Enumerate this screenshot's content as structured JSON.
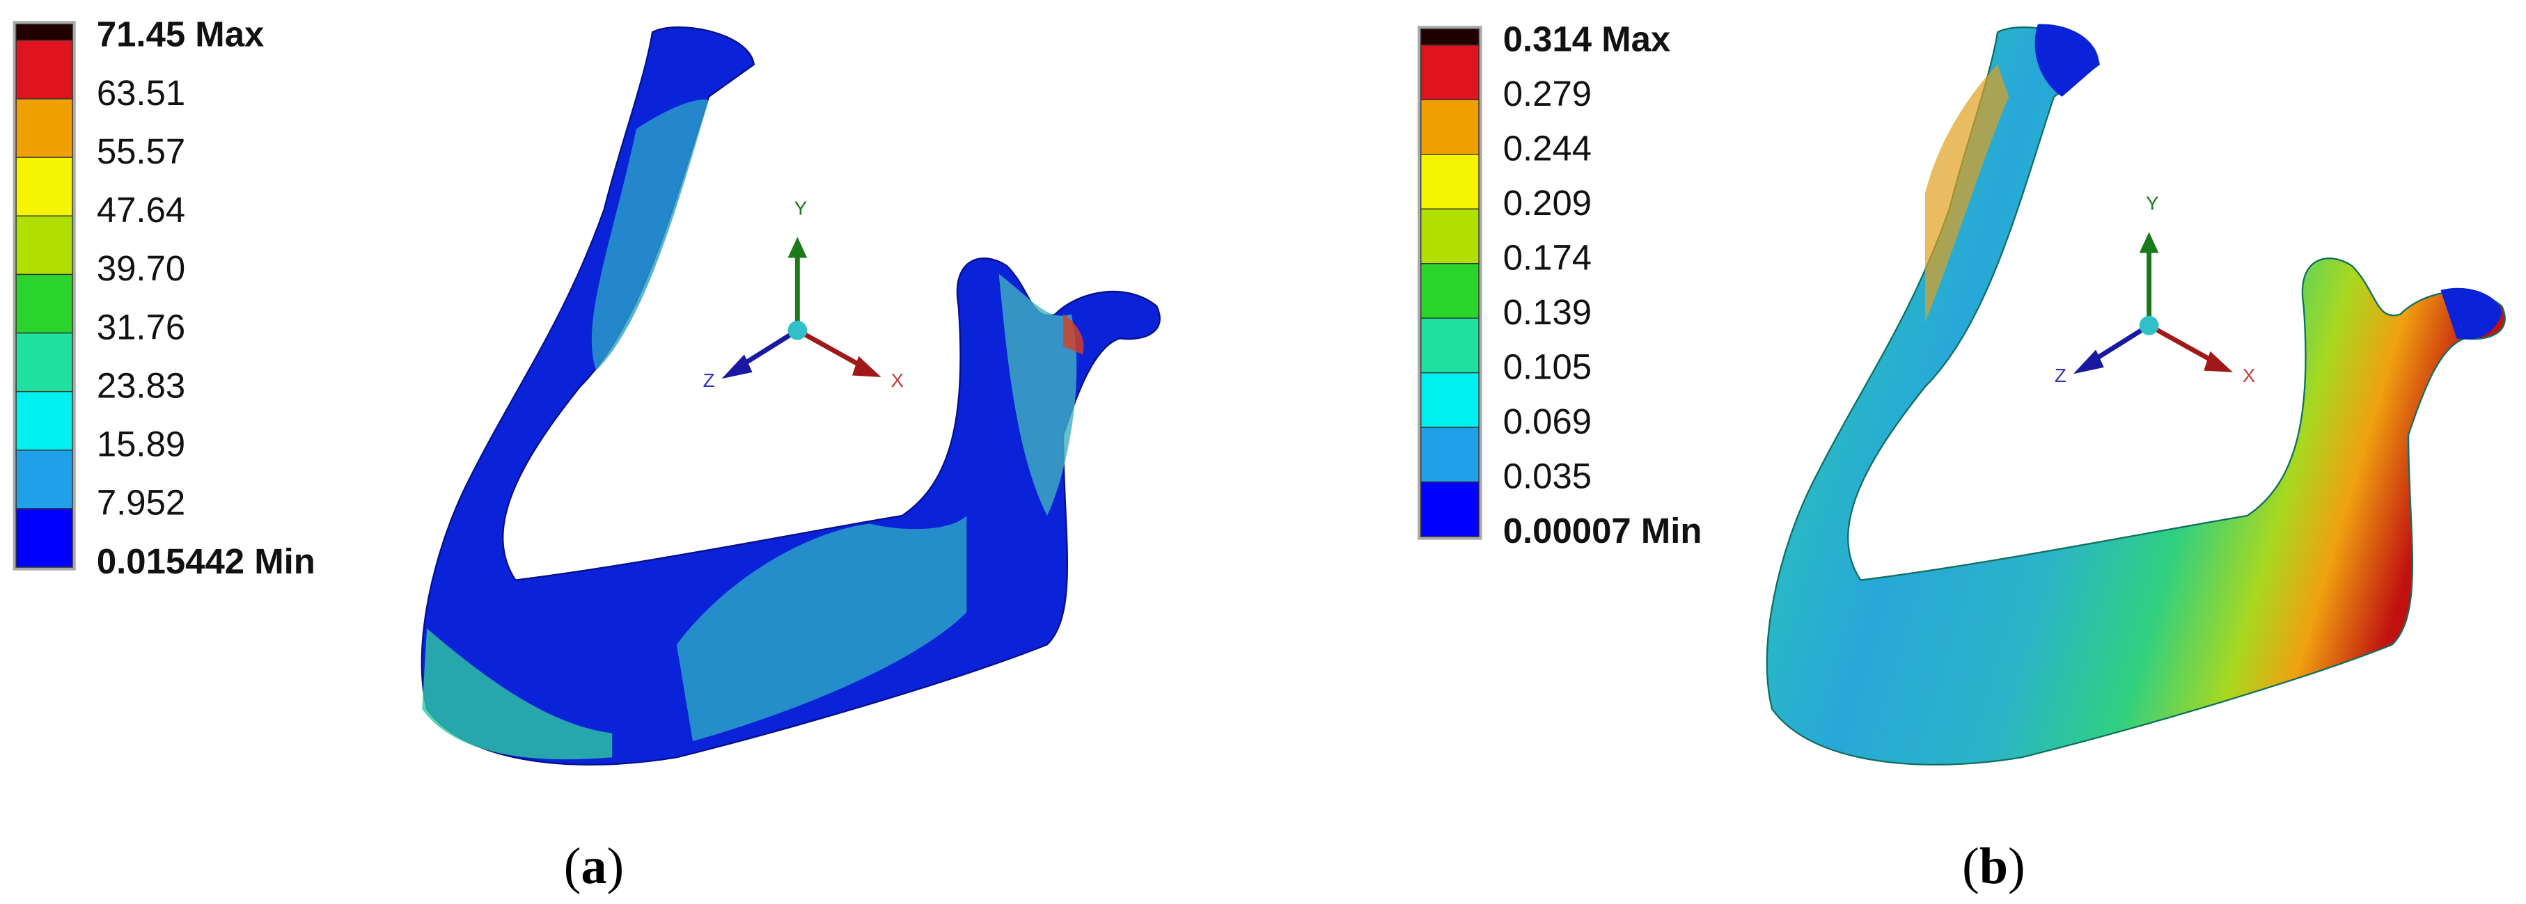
{
  "panels": [
    {
      "legend": [
        "71.45 Max",
        "63.51",
        "55.57",
        "47.64",
        "39.70",
        "31.76",
        "23.83",
        "15.89",
        "7.952",
        "0.015442 Min"
      ],
      "axes": {
        "x": "X",
        "y": "Y",
        "z": "Z"
      },
      "caption": [
        "(",
        "a",
        ")"
      ]
    },
    {
      "legend": [
        "0.314 Max",
        "0.279",
        "0.244",
        "0.209",
        "0.174",
        "0.139",
        "0.105",
        "0.069",
        "0.035",
        "0.00007 Min"
      ],
      "axes": {
        "x": "X",
        "y": "Y",
        "z": "Z"
      },
      "caption": [
        "(",
        "b",
        ")"
      ]
    }
  ]
}
